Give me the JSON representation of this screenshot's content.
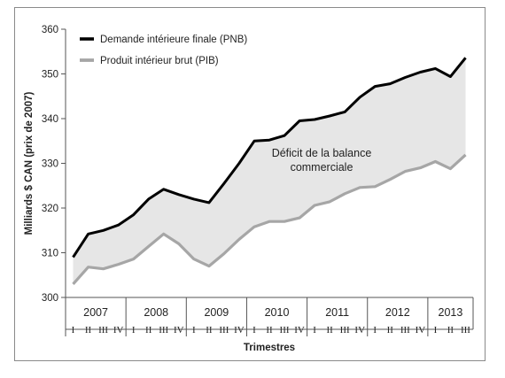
{
  "chart_data": {
    "type": "line",
    "title": "",
    "xlabel": "Trimestres",
    "ylabel": "Milliards $ CAN (prix de 2007)",
    "ylim": [
      300,
      360
    ],
    "yticks": [
      300,
      310,
      320,
      330,
      340,
      350,
      360
    ],
    "years": [
      "2007",
      "2008",
      "2009",
      "2010",
      "2011",
      "2012",
      "2013"
    ],
    "quarters": [
      "I",
      "II",
      "III",
      "IV",
      "I",
      "II",
      "III",
      "IV",
      "I",
      "II",
      "III",
      "IV",
      "I",
      "II",
      "III",
      "IV",
      "I",
      "II",
      "III",
      "IV",
      "I",
      "II",
      "III",
      "IV",
      "I",
      "II",
      "III"
    ],
    "series": [
      {
        "name": "Demande intérieure finale (PNB)",
        "color": "#000000",
        "values": [
          309.0,
          314.2,
          315.0,
          316.2,
          318.5,
          322.0,
          324.2,
          323.0,
          322.0,
          321.2,
          325.5,
          330.0,
          335.0,
          335.2,
          336.2,
          339.5,
          339.8,
          340.6,
          341.5,
          344.8,
          347.2,
          347.8,
          349.2,
          350.4,
          351.2,
          349.4,
          353.6
        ]
      },
      {
        "name": "Produit intérieur brut (PIB)",
        "color": "#a6a6a6",
        "values": [
          303.0,
          306.8,
          306.4,
          307.4,
          308.6,
          311.4,
          314.2,
          312.0,
          308.6,
          307.0,
          309.8,
          313.0,
          315.8,
          317.0,
          317.0,
          317.8,
          320.6,
          321.4,
          323.2,
          324.6,
          324.8,
          326.4,
          328.2,
          329.0,
          330.4,
          328.8,
          331.9
        ]
      }
    ],
    "annotation": "Déficit de la balance commerciale",
    "fill_color": "#e6e6e6",
    "legend_position": "top-left",
    "grid": false
  }
}
